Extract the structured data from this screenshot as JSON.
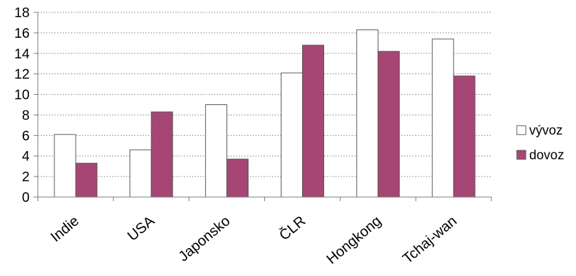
{
  "chart_data": {
    "type": "bar",
    "title": "",
    "xlabel": "",
    "ylabel": "",
    "categories": [
      "Indie",
      "USA",
      "Japonsko",
      "ČLR",
      "Hongkong",
      "Tchaj-wan"
    ],
    "series": [
      {
        "name": "vývoz",
        "values": [
          6.1,
          4.6,
          9.0,
          12.1,
          16.3,
          15.4
        ]
      },
      {
        "name": "dovoz",
        "values": [
          3.3,
          8.3,
          3.7,
          14.8,
          14.2,
          11.8
        ]
      }
    ],
    "ylim": [
      0,
      18
    ],
    "yticks": [
      "0",
      "2",
      "4",
      "6",
      "8",
      "10",
      "12",
      "14",
      "16",
      "18"
    ],
    "grid": true,
    "legend_position": "right",
    "colors": {
      "vývoz": "#ffffff",
      "dovoz": "#a64675",
      "bar_stroke": "#555555",
      "grid": "#9a9a9a",
      "axis": "#777777"
    }
  }
}
